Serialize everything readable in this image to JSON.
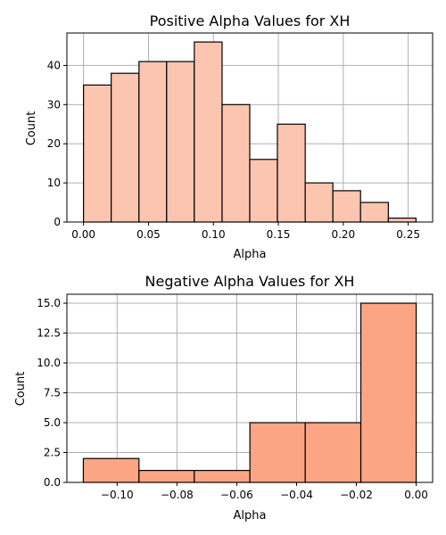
{
  "chart_data": [
    {
      "type": "bar",
      "title": "Positive Alpha Values for XH",
      "xlabel": "Alpha",
      "ylabel": "Count",
      "bin_edges": [
        0.0,
        0.0213,
        0.0427,
        0.064,
        0.0853,
        0.1067,
        0.128,
        0.1493,
        0.1707,
        0.192,
        0.2133,
        0.2347,
        0.256
      ],
      "values": [
        35,
        38,
        41,
        41,
        46,
        30,
        16,
        25,
        10,
        8,
        5,
        1
      ],
      "xlim": [
        -0.0128,
        0.2688
      ],
      "ylim": [
        0,
        48.3
      ],
      "xticks": [
        0.0,
        0.05,
        0.1,
        0.15,
        0.2,
        0.25
      ],
      "xtick_labels": [
        "0.00",
        "0.05",
        "0.10",
        "0.15",
        "0.20",
        "0.25"
      ],
      "yticks": [
        0,
        10,
        20,
        30,
        40
      ],
      "ytick_labels": [
        "0",
        "10",
        "20",
        "30",
        "40"
      ],
      "grid": true,
      "color": "#fcc5b0"
    },
    {
      "type": "bar",
      "title": "Negative Alpha Values for XH",
      "xlabel": "Alpha",
      "ylabel": "Count",
      "bin_edges": [
        -0.1113,
        -0.0927,
        -0.0742,
        -0.0556,
        -0.0371,
        -0.0185,
        0.0
      ],
      "values": [
        2,
        1,
        1,
        5,
        5,
        15
      ],
      "xlim": [
        -0.1168,
        0.0055
      ],
      "ylim": [
        0,
        15.75
      ],
      "xticks": [
        -0.1,
        -0.08,
        -0.06,
        -0.04,
        -0.02,
        0.0
      ],
      "xtick_labels": [
        "−0.10",
        "−0.08",
        "−0.06",
        "−0.04",
        "−0.02",
        "0.00"
      ],
      "yticks": [
        0,
        2.5,
        5,
        7.5,
        10,
        12.5,
        15
      ],
      "ytick_labels": [
        "0.0",
        "2.5",
        "5.0",
        "7.5",
        "10.0",
        "12.5",
        "15.0"
      ],
      "grid": true,
      "color": "#fca584"
    }
  ]
}
